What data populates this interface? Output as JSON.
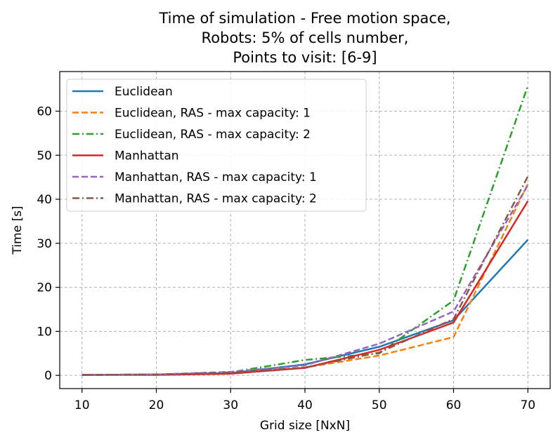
{
  "chart_data": {
    "type": "line",
    "title": [
      "Time of simulation - Free motion space,",
      "Robots: 5% of cells number,",
      "Points to visit: [6-9]"
    ],
    "xlabel": "Grid size [NxN]",
    "ylabel": "Time [s]",
    "xlim": [
      7,
      73
    ],
    "ylim": [
      -3,
      69
    ],
    "x_ticks": [
      10,
      20,
      30,
      40,
      50,
      60,
      70
    ],
    "y_ticks": [
      0,
      10,
      20,
      30,
      40,
      50,
      60
    ],
    "grid": true,
    "legend_position": "top-left",
    "x": [
      10,
      20,
      30,
      40,
      50,
      60,
      70
    ],
    "series": [
      {
        "name": "Euclidean",
        "color": "#1f77b4",
        "dash": "solid",
        "values": [
          0.1,
          0.2,
          0.5,
          2.5,
          6.5,
          12.5,
          30.8
        ]
      },
      {
        "name": "Euclidean, RAS - max capacity: 1",
        "color": "#ff7f0e",
        "dash": "dashed",
        "values": [
          0.1,
          0.2,
          0.5,
          1.8,
          4.5,
          8.7,
          43.5
        ]
      },
      {
        "name": "Euclidean, RAS - max capacity: 2",
        "color": "#2ca02c",
        "dash": "dashdot",
        "values": [
          0.1,
          0.2,
          0.7,
          3.5,
          5.0,
          17.0,
          65.8
        ]
      },
      {
        "name": "Manhattan",
        "color": "#d62728",
        "dash": "solid",
        "values": [
          0.1,
          0.1,
          0.4,
          1.7,
          5.8,
          12.0,
          39.6
        ]
      },
      {
        "name": "Manhattan, RAS - max capacity: 1",
        "color": "#9467bd",
        "dash": "dashed",
        "values": [
          0.1,
          0.2,
          0.8,
          2.3,
          7.2,
          14.5,
          43.2
        ]
      },
      {
        "name": "Manhattan, RAS - max capacity: 2",
        "color": "#8c564b",
        "dash": "dashdot",
        "values": [
          0.1,
          0.2,
          0.6,
          1.8,
          5.2,
          12.8,
          45.2
        ]
      }
    ]
  }
}
